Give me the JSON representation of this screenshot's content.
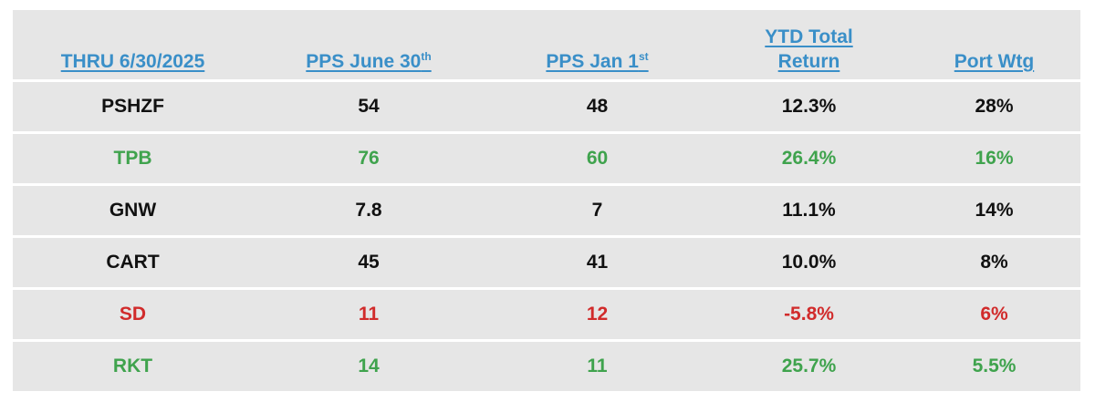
{
  "table": {
    "headers": [
      {
        "label": "THRU 6/30/2025",
        "sup": ""
      },
      {
        "label": "PPS June 30",
        "sup": "th"
      },
      {
        "label": "PPS Jan 1",
        "sup": "st"
      },
      {
        "label": "YTD Total Return",
        "sup": ""
      },
      {
        "label": "Port Wtg",
        "sup": ""
      }
    ],
    "rows": [
      {
        "cells": [
          "PSHZF",
          "54",
          "48",
          "12.3%",
          "28%"
        ],
        "color": "#111111"
      },
      {
        "cells": [
          "TPB",
          "76",
          "60",
          "26.4%",
          "16%"
        ],
        "color": "#3fa34d"
      },
      {
        "cells": [
          "GNW",
          "7.8",
          "7",
          "11.1%",
          "14%"
        ],
        "color": "#111111"
      },
      {
        "cells": [
          "CART",
          "45",
          "41",
          "10.0%",
          "8%"
        ],
        "color": "#111111"
      },
      {
        "cells": [
          "SD",
          "11",
          "12",
          "-5.8%",
          "6%"
        ],
        "color": "#d12b2b"
      },
      {
        "cells": [
          "RKT",
          "14",
          "11",
          "25.7%",
          "5.5%"
        ],
        "color": "#3fa34d"
      }
    ]
  },
  "colors": {
    "header_text": "#3a8fc8",
    "cell_background": "#e6e6e6",
    "black": "#111111",
    "green": "#3fa34d",
    "red": "#d12b2b"
  }
}
